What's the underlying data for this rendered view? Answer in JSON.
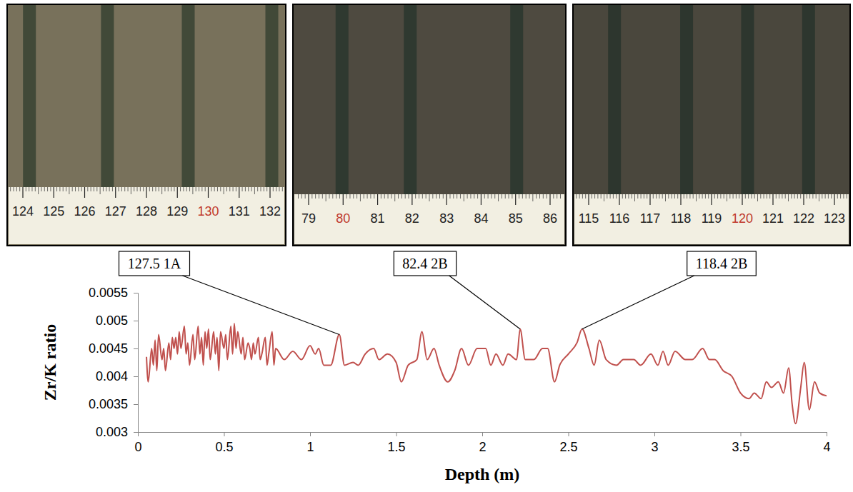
{
  "chart_data": {
    "type": "line",
    "x_label": "Depth (m)",
    "y_label": "Zr/K ratio",
    "x": [
      0.05,
      0.06,
      0.08,
      0.09,
      0.1,
      0.11,
      0.12,
      0.14,
      0.15,
      0.16,
      0.18,
      0.19,
      0.2,
      0.21,
      0.22,
      0.23,
      0.24,
      0.25,
      0.27,
      0.28,
      0.29,
      0.3,
      0.32,
      0.33,
      0.35,
      0.36,
      0.37,
      0.38,
      0.39,
      0.4,
      0.41,
      0.42,
      0.44,
      0.45,
      0.46,
      0.47,
      0.48,
      0.5,
      0.51,
      0.52,
      0.54,
      0.55,
      0.56,
      0.57,
      0.58,
      0.6,
      0.61,
      0.62,
      0.64,
      0.65,
      0.66,
      0.67,
      0.68,
      0.7,
      0.71,
      0.72,
      0.74,
      0.75,
      0.76,
      0.78,
      0.79,
      0.8,
      0.85,
      0.9,
      0.95,
      1.0,
      1.03,
      1.05,
      1.08,
      1.12,
      1.17,
      1.2,
      1.25,
      1.28,
      1.32,
      1.37,
      1.4,
      1.45,
      1.5,
      1.53,
      1.57,
      1.62,
      1.65,
      1.68,
      1.72,
      1.75,
      1.8,
      1.84,
      1.88,
      1.92,
      1.97,
      2.02,
      2.05,
      2.08,
      2.12,
      2.15,
      2.2,
      2.22,
      2.25,
      2.3,
      2.35,
      2.38,
      2.42,
      2.45,
      2.5,
      2.55,
      2.58,
      2.62,
      2.65,
      2.68,
      2.72,
      2.78,
      2.82,
      2.88,
      2.92,
      2.98,
      3.02,
      3.05,
      3.08,
      3.12,
      3.18,
      3.22,
      3.28,
      3.32,
      3.35,
      3.4,
      3.45,
      3.5,
      3.55,
      3.58,
      3.62,
      3.65,
      3.68,
      3.72,
      3.75,
      3.78,
      3.8,
      3.82,
      3.85,
      3.87,
      3.9,
      3.93,
      3.96,
      4.0
    ],
    "series": [
      {
        "color": "#c0504d",
        "values": [
          0.00435,
          0.0039,
          0.0045,
          0.0042,
          0.00465,
          0.0041,
          0.00475,
          0.0043,
          0.0045,
          0.0041,
          0.0046,
          0.0043,
          0.0047,
          0.0045,
          0.0047,
          0.0044,
          0.0048,
          0.0045,
          0.0049,
          0.0044,
          0.0046,
          0.0042,
          0.00475,
          0.0043,
          0.0049,
          0.0044,
          0.0047,
          0.0042,
          0.0048,
          0.0045,
          0.00485,
          0.0043,
          0.0048,
          0.0044,
          0.0047,
          0.0041,
          0.0048,
          0.0045,
          0.00475,
          0.0043,
          0.0049,
          0.0044,
          0.00495,
          0.0045,
          0.0048,
          0.0044,
          0.0047,
          0.0043,
          0.0046,
          0.0045,
          0.0043,
          0.0046,
          0.0044,
          0.0047,
          0.0043,
          0.0044,
          0.0047,
          0.0042,
          0.0044,
          0.0048,
          0.0042,
          0.0045,
          0.0043,
          0.00445,
          0.0043,
          0.00455,
          0.0044,
          0.0045,
          0.0042,
          0.0042,
          0.00475,
          0.0042,
          0.00425,
          0.0042,
          0.0044,
          0.0045,
          0.0043,
          0.0044,
          0.00425,
          0.0039,
          0.0042,
          0.0043,
          0.0048,
          0.0043,
          0.0045,
          0.0042,
          0.0039,
          0.0041,
          0.0045,
          0.0042,
          0.0045,
          0.0045,
          0.0042,
          0.0044,
          0.0042,
          0.0044,
          0.0043,
          0.00485,
          0.0043,
          0.0043,
          0.0045,
          0.0045,
          0.0039,
          0.0042,
          0.0044,
          0.0046,
          0.00485,
          0.0045,
          0.0042,
          0.00465,
          0.0043,
          0.0042,
          0.0043,
          0.0043,
          0.0042,
          0.0044,
          0.0042,
          0.00445,
          0.0042,
          0.00445,
          0.0043,
          0.0043,
          0.0045,
          0.0043,
          0.0043,
          0.0041,
          0.004,
          0.0037,
          0.0036,
          0.0037,
          0.0036,
          0.0039,
          0.0038,
          0.0039,
          0.0037,
          0.00415,
          0.0035,
          0.00315,
          0.0038,
          0.00425,
          0.0034,
          0.0039,
          0.0037,
          0.00365
        ]
      }
    ],
    "xlim": [
      0,
      4
    ],
    "xticks": [
      0,
      0.5,
      1,
      1.5,
      2,
      2.5,
      3,
      3.5,
      4
    ],
    "ylim": [
      0.003,
      0.0055
    ],
    "yticks": [
      0.003,
      0.0035,
      0.004,
      0.0045,
      0.005,
      0.0055
    ],
    "annotations": [
      {
        "text": "127.5 1A",
        "x": 1.17,
        "y": 0.00475
      },
      {
        "text": "82.4 2B",
        "x": 2.22,
        "y": 0.00485
      },
      {
        "text": "118.4 2B",
        "x": 2.58,
        "y": 0.00485
      }
    ],
    "photos": [
      {
        "ruler": [
          124,
          125,
          126,
          127,
          128,
          129,
          130,
          131,
          132
        ]
      },
      {
        "ruler": [
          79,
          80,
          81,
          82,
          83,
          84,
          85,
          86
        ]
      },
      {
        "ruler": [
          115,
          116,
          117,
          118,
          119,
          120,
          121,
          122,
          123
        ]
      }
    ]
  }
}
